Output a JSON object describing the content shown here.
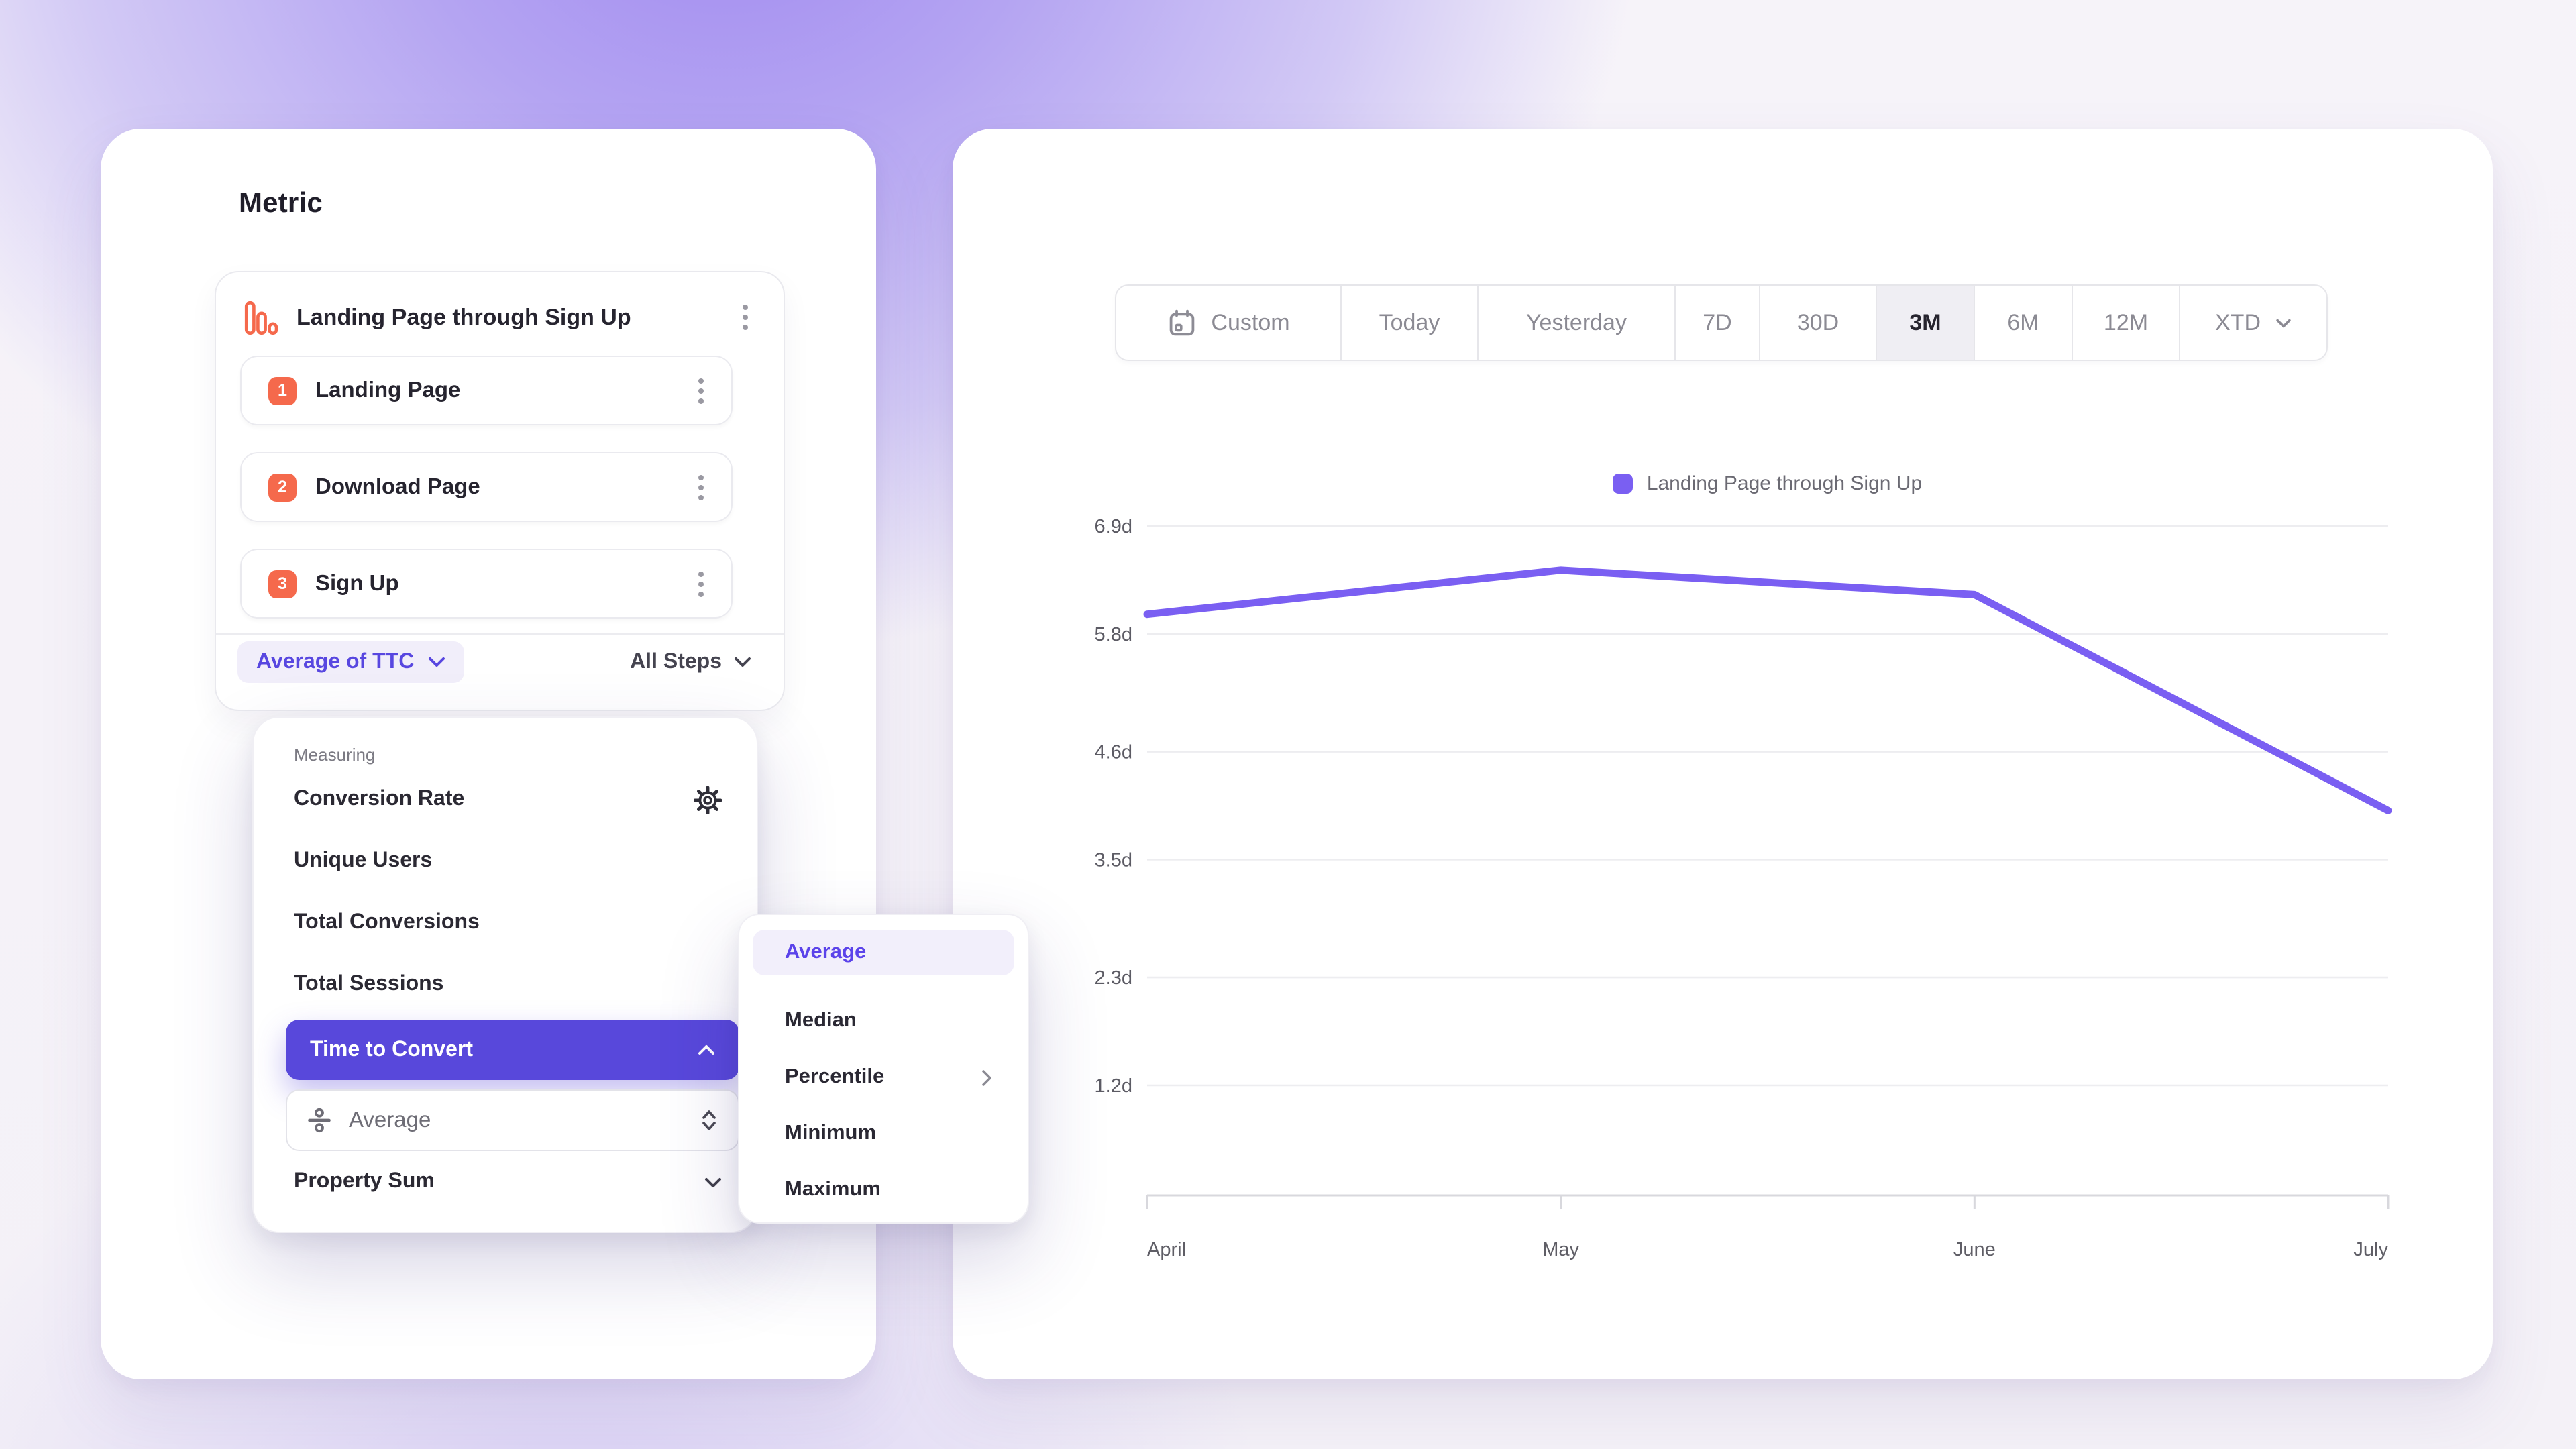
{
  "metric_panel": {
    "title": "Metric",
    "funnel": {
      "title": "Landing Page through Sign Up",
      "icon": "bar-chart-icon",
      "steps": [
        {
          "number": "1",
          "label": "Landing Page"
        },
        {
          "number": "2",
          "label": "Download Page"
        },
        {
          "number": "3",
          "label": "Sign Up"
        }
      ],
      "measurement_label": "Average of TTC",
      "steps_scope_label": "All Steps"
    }
  },
  "measuring_menu": {
    "heading": "Measuring",
    "items": [
      {
        "label": "Conversion Rate",
        "icon": "gear-icon"
      },
      {
        "label": "Unique Users"
      },
      {
        "label": "Total Conversions"
      },
      {
        "label": "Total Sessions"
      },
      {
        "label": "Time to Convert",
        "selected": true,
        "expanded": true
      },
      {
        "label": "Property Sum",
        "collapsed": true
      }
    ],
    "time_to_convert_aggregation": {
      "label": "Average",
      "icon": "divide-icon"
    }
  },
  "aggregation_submenu": {
    "items": [
      {
        "label": "Average",
        "selected": true
      },
      {
        "label": "Median"
      },
      {
        "label": "Percentile",
        "has_submenu": true
      },
      {
        "label": "Minimum"
      },
      {
        "label": "Maximum"
      }
    ]
  },
  "chart_panel": {
    "date_range": {
      "options": [
        "Custom",
        "Today",
        "Yesterday",
        "7D",
        "30D",
        "3M",
        "6M",
        "12M",
        "XTD"
      ],
      "selected": "3M"
    }
  },
  "chart_data": {
    "type": "line",
    "x": [
      "April",
      "May",
      "June",
      "July"
    ],
    "series": [
      {
        "name": "Landing Page through Sign Up",
        "values": [
          6.0,
          6.45,
          6.2,
          4.0
        ]
      }
    ],
    "legend": [
      {
        "name": "Landing Page through Sign Up",
        "color": "#7A5FF2"
      }
    ],
    "y_tick_labels": [
      "6.9d",
      "5.8d",
      "4.6d",
      "3.5d",
      "2.3d",
      "1.2d"
    ],
    "y_ticks_days": [
      6.9,
      5.8,
      4.6,
      3.5,
      2.3,
      1.2
    ],
    "ylim": [
      1.2,
      6.9
    ],
    "unit": "d",
    "grid": "horizontal",
    "legend_position": "top-center",
    "title": ""
  },
  "colors": {
    "accent_purple": "#5847E0",
    "selected_item_bg": "#5848DB",
    "line_purple": "#7A5FF2",
    "coral": "#F5694C",
    "pill_bg": "#F1EEFA",
    "submenu_selected_bg": "#F2EFFB",
    "selected_range_bg": "#EFEEF3"
  }
}
